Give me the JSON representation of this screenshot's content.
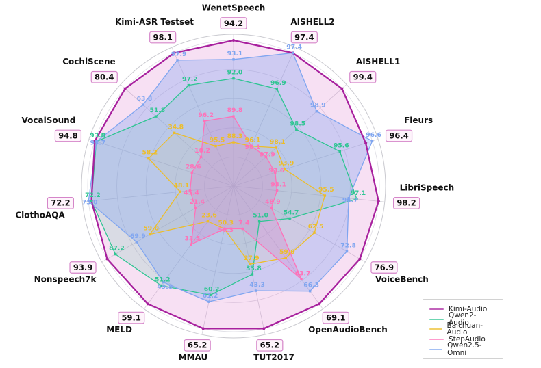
{
  "figure": {
    "kind": "radar comparison of audio language models",
    "background": "#ffffff"
  },
  "chart_data": {
    "type": "radar",
    "categories": [
      "WenetSpeech",
      "AISHELL2",
      "AISHELL1",
      "Fleurs",
      "LibriSpeech",
      "VoiceBench",
      "OpenAudioBench",
      "TUT2017",
      "MMAU",
      "MELD",
      "Nonspeech7k",
      "ClothoAQA",
      "VocalSound",
      "CochlScene",
      "Kimi-ASR Testset"
    ],
    "series": [
      {
        "name": "Kimi-Audio",
        "color": "#A8219E",
        "fill": "rgba(204,62,181,0.16)",
        "boxed_labels": true,
        "values": [
          94.2,
          97.4,
          99.4,
          96.4,
          98.2,
          76.9,
          69.1,
          65.2,
          65.2,
          59.1,
          93.9,
          72.2,
          94.8,
          80.4,
          98.1
        ]
      },
      {
        "name": "Qwen2-Audio",
        "color": "#2EC592",
        "fill": "rgba(46,197,146,0.15)",
        "boxed_labels": false,
        "values": [
          92.0,
          96.9,
          98.5,
          95.6,
          97.1,
          54.7,
          51.0,
          33.8,
          60.2,
          51.2,
          87.2,
          72.2,
          93.8,
          51.8,
          97.2
        ]
      },
      {
        "name": "Baichuan-Audio",
        "color": "#EDBD28",
        "fill": "rgba(245,205,80,0.13)",
        "boxed_labels": false,
        "values": [
          88.3,
          96.1,
          98.1,
          93.9,
          95.5,
          62.5,
          59.0,
          27.9,
          50.3,
          23.6,
          59.0,
          48.1,
          58.2,
          34.8,
          95.5
        ]
      },
      {
        "name": "StepAudio",
        "color": "#FF71B8",
        "fill": "rgba(255,113,184,0.30)",
        "boxed_labels": false,
        "values": [
          89.8,
          96.1,
          97.9,
          93.6,
          93.1,
          48.9,
          63.7,
          7.4,
          50.3,
          33.5,
          21.4,
          45.4,
          28.6,
          10.2,
          96.2
        ]
      },
      {
        "name": "Qwen2.5-Omni",
        "color": "#7FA5F0",
        "fill": "rgba(127,165,240,0.34)",
        "boxed_labels": false,
        "values": [
          93.1,
          97.4,
          98.9,
          96.6,
          96.7,
          72.8,
          66.3,
          43.3,
          61.2,
          49.8,
          69.9,
          73.0,
          93.7,
          63.8,
          97.9
        ]
      }
    ],
    "normalization": "per-axis min-max mapped to radius fraction 0.30-1.00",
    "grid": true,
    "grid_levels": [
      0.2,
      0.4,
      0.6,
      0.8,
      1.0
    ],
    "legend_position": "lower right",
    "value_box_style": {
      "bg": "#FEF4FB",
      "border": "#D585C9",
      "text": "#111111"
    },
    "grid_color": "#dcdbe2",
    "spoke_color": "#d4d3da",
    "outer_circle_color": "#c9c9cf"
  }
}
